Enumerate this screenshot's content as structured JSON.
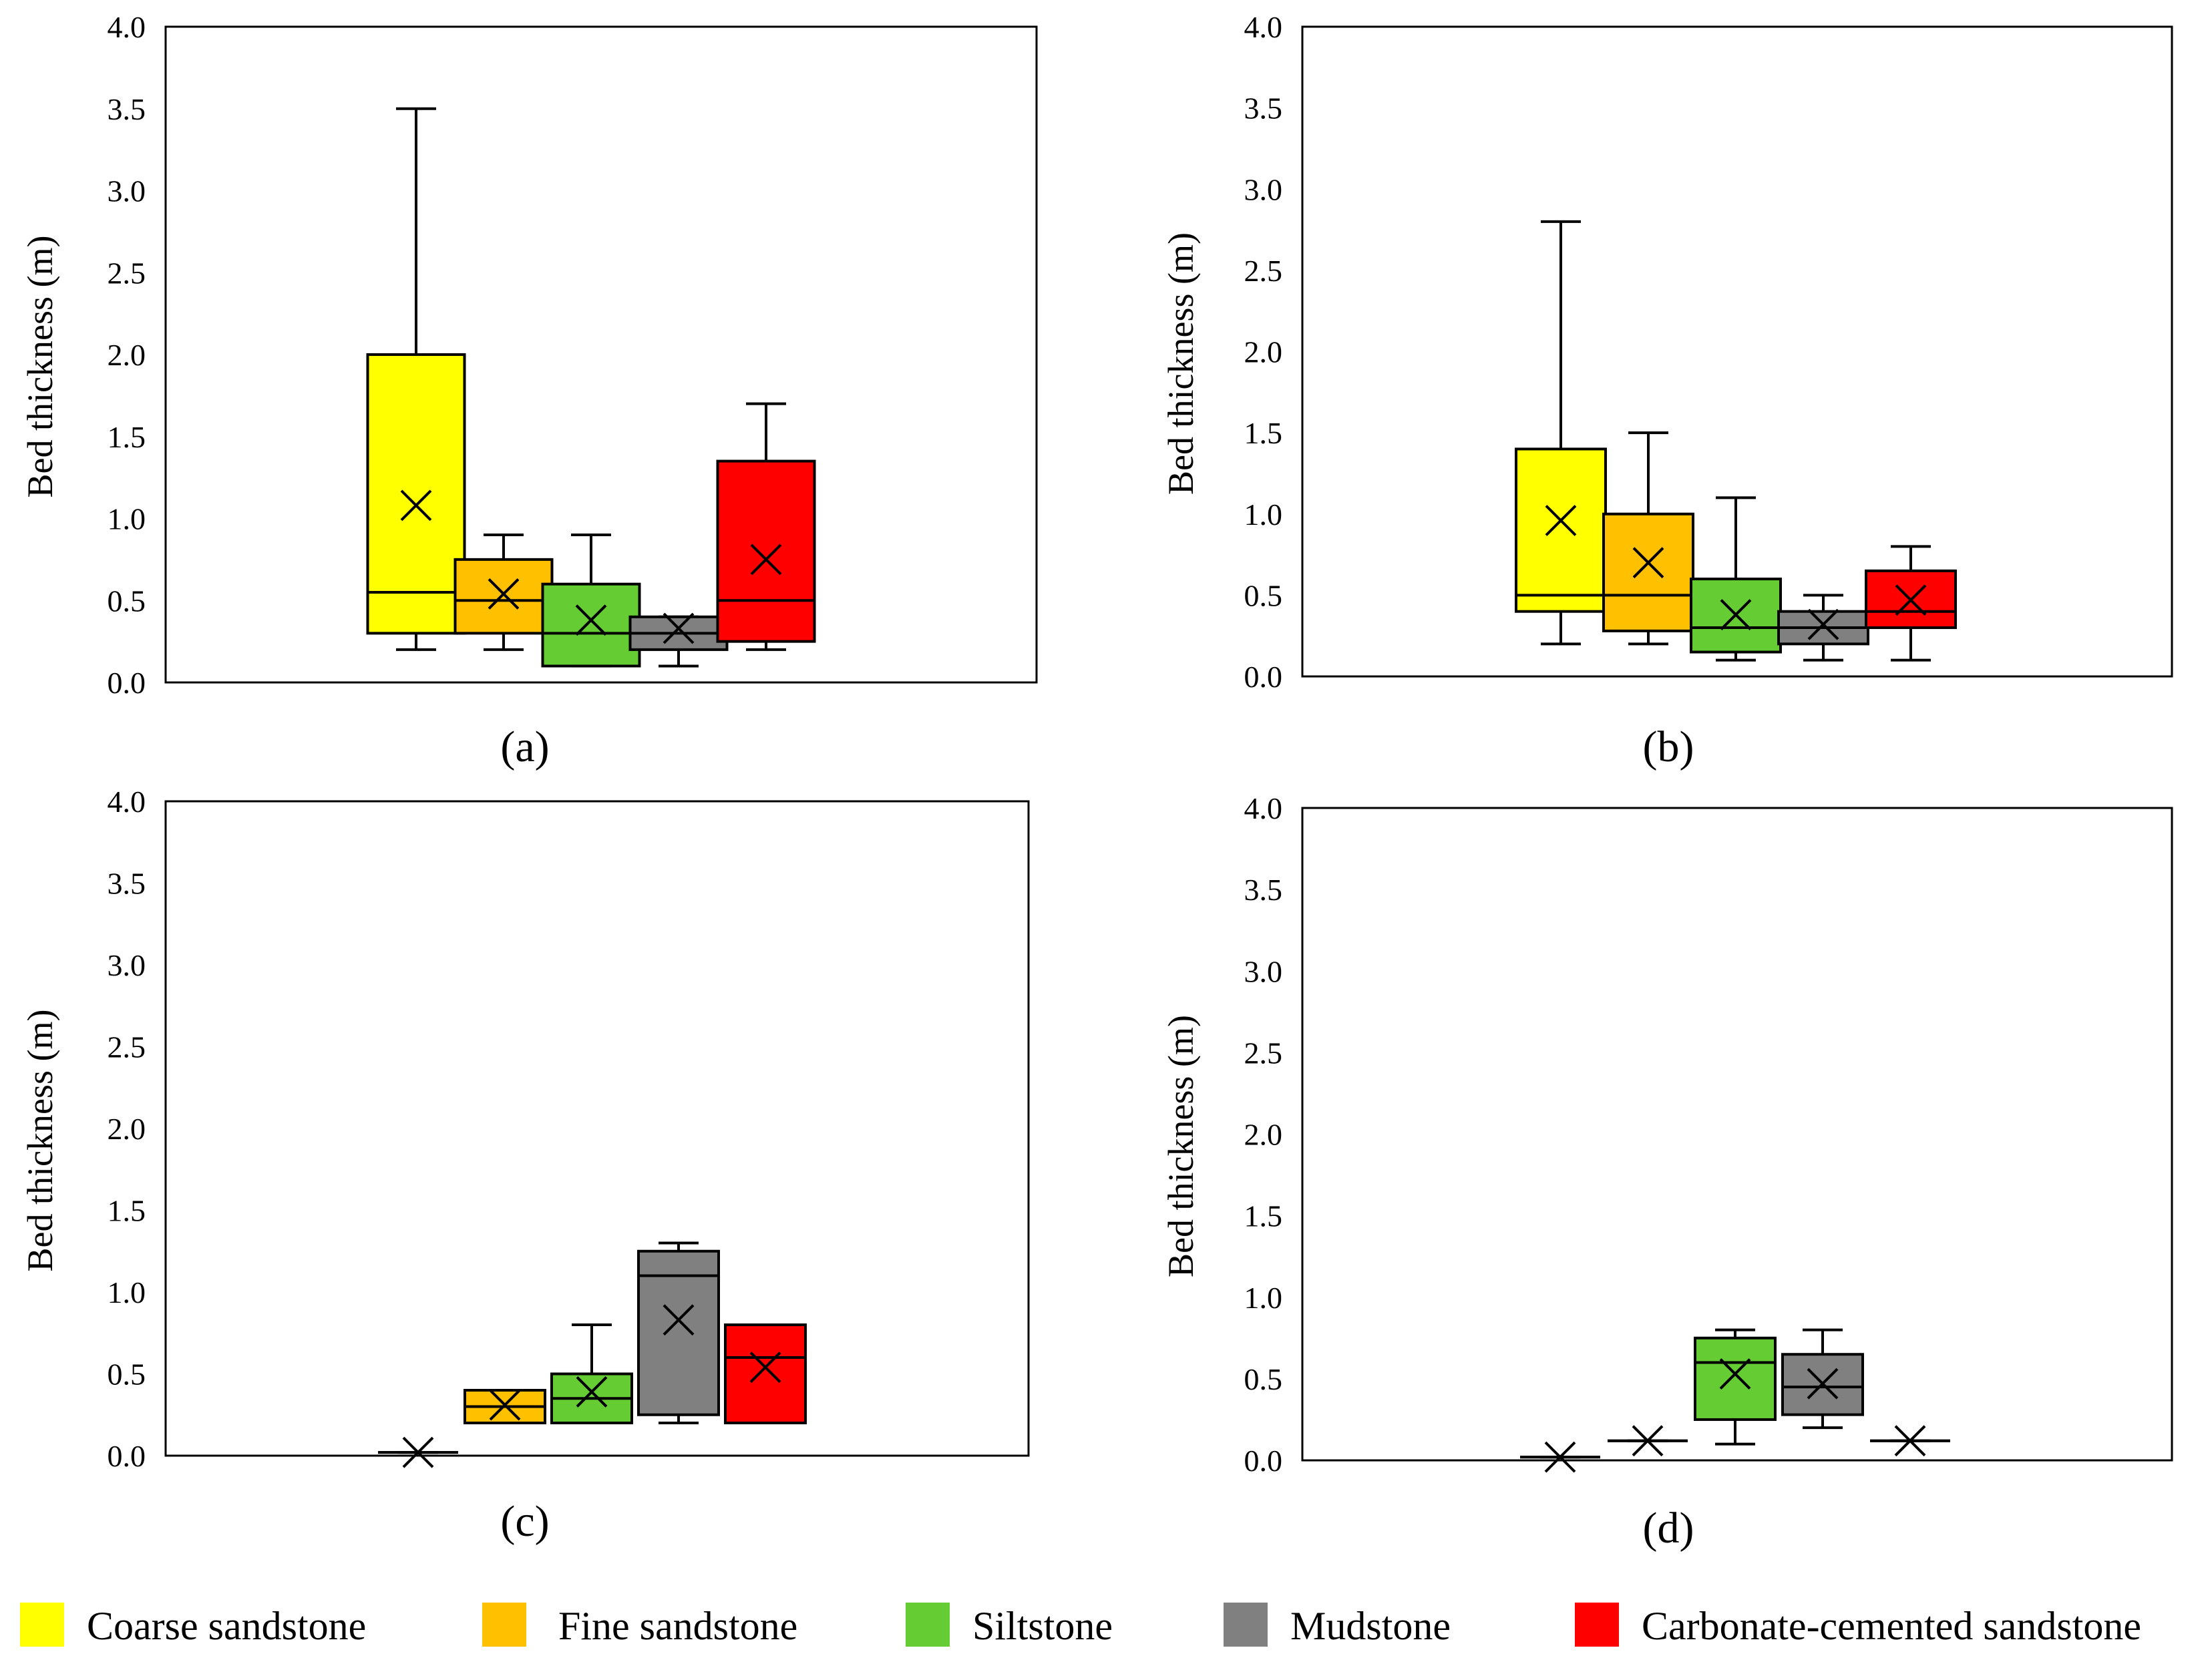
{
  "chart_data": {
    "type": "box",
    "ylabel": "Bed thickness (m)",
    "ylim": [
      0,
      4
    ],
    "yticks": [
      "0.0",
      "0.5",
      "1.0",
      "1.5",
      "2.0",
      "2.5",
      "3.0",
      "3.5",
      "4.0"
    ],
    "categories": [
      {
        "name": "Coarse sandstone",
        "color": "#ffff00"
      },
      {
        "name": "Fine sandstone",
        "color": "#ffc000"
      },
      {
        "name": "Siltstone",
        "color": "#66cc33"
      },
      {
        "name": "Mudstone",
        "color": "#808080"
      },
      {
        "name": "Carbonate-cemented sandstone",
        "color": "#ff0000"
      }
    ],
    "panels": [
      {
        "label": "(a)",
        "boxes": [
          {
            "category": 0,
            "min": 0.2,
            "q1": 0.3,
            "median": 0.55,
            "q3": 2.0,
            "max": 3.5,
            "mean": 1.08
          },
          {
            "category": 1,
            "min": 0.2,
            "q1": 0.3,
            "median": 0.5,
            "q3": 0.75,
            "max": 0.9,
            "mean": 0.54
          },
          {
            "category": 2,
            "min": 0.1,
            "q1": 0.1,
            "median": 0.3,
            "q3": 0.6,
            "max": 0.9,
            "mean": 0.38
          },
          {
            "category": 3,
            "min": 0.1,
            "q1": 0.2,
            "median": 0.3,
            "q3": 0.4,
            "max": 0.4,
            "mean": 0.33
          },
          {
            "category": 4,
            "min": 0.2,
            "q1": 0.25,
            "median": 0.5,
            "q3": 1.35,
            "max": 1.7,
            "mean": 0.75
          }
        ]
      },
      {
        "label": "(b)",
        "boxes": [
          {
            "category": 0,
            "min": 0.2,
            "q1": 0.4,
            "median": 0.5,
            "q3": 1.4,
            "max": 2.8,
            "mean": 0.96
          },
          {
            "category": 1,
            "min": 0.2,
            "q1": 0.28,
            "median": 0.5,
            "q3": 1.0,
            "max": 1.5,
            "mean": 0.7
          },
          {
            "category": 2,
            "min": 0.1,
            "q1": 0.15,
            "median": 0.3,
            "q3": 0.6,
            "max": 1.1,
            "mean": 0.38
          },
          {
            "category": 3,
            "min": 0.1,
            "q1": 0.2,
            "median": 0.3,
            "q3": 0.4,
            "max": 0.5,
            "mean": 0.32
          },
          {
            "category": 4,
            "min": 0.1,
            "q1": 0.3,
            "median": 0.4,
            "q3": 0.65,
            "max": 0.8,
            "mean": 0.47
          }
        ]
      },
      {
        "label": "(c)",
        "boxes": [
          {
            "category": 0,
            "min": 0.02,
            "q1": 0.02,
            "median": 0.02,
            "q3": 0.02,
            "max": 0.02,
            "mean": 0.02
          },
          {
            "category": 1,
            "min": 0.2,
            "q1": 0.2,
            "median": 0.3,
            "q3": 0.4,
            "max": 0.4,
            "mean": 0.31
          },
          {
            "category": 2,
            "min": 0.2,
            "q1": 0.2,
            "median": 0.35,
            "q3": 0.5,
            "max": 0.8,
            "mean": 0.39
          },
          {
            "category": 3,
            "min": 0.2,
            "q1": 0.25,
            "median": 1.1,
            "q3": 1.25,
            "max": 1.3,
            "mean": 0.83
          },
          {
            "category": 4,
            "min": 0.2,
            "q1": 0.2,
            "median": 0.6,
            "q3": 0.8,
            "max": 0.8,
            "mean": 0.54
          }
        ]
      },
      {
        "label": "(d)",
        "boxes": [
          {
            "category": 0,
            "min": 0.02,
            "q1": 0.02,
            "median": 0.02,
            "q3": 0.02,
            "max": 0.02,
            "mean": 0.02
          },
          {
            "category": 1,
            "min": 0.12,
            "q1": 0.12,
            "median": 0.12,
            "q3": 0.12,
            "max": 0.12,
            "mean": 0.12
          },
          {
            "category": 2,
            "min": 0.1,
            "q1": 0.25,
            "median": 0.6,
            "q3": 0.75,
            "max": 0.8,
            "mean": 0.53
          },
          {
            "category": 3,
            "min": 0.2,
            "q1": 0.28,
            "median": 0.45,
            "q3": 0.65,
            "max": 0.8,
            "mean": 0.47
          },
          {
            "category": 4,
            "min": 0.12,
            "q1": 0.12,
            "median": 0.12,
            "q3": 0.12,
            "max": 0.12,
            "mean": 0.12
          }
        ]
      }
    ]
  }
}
